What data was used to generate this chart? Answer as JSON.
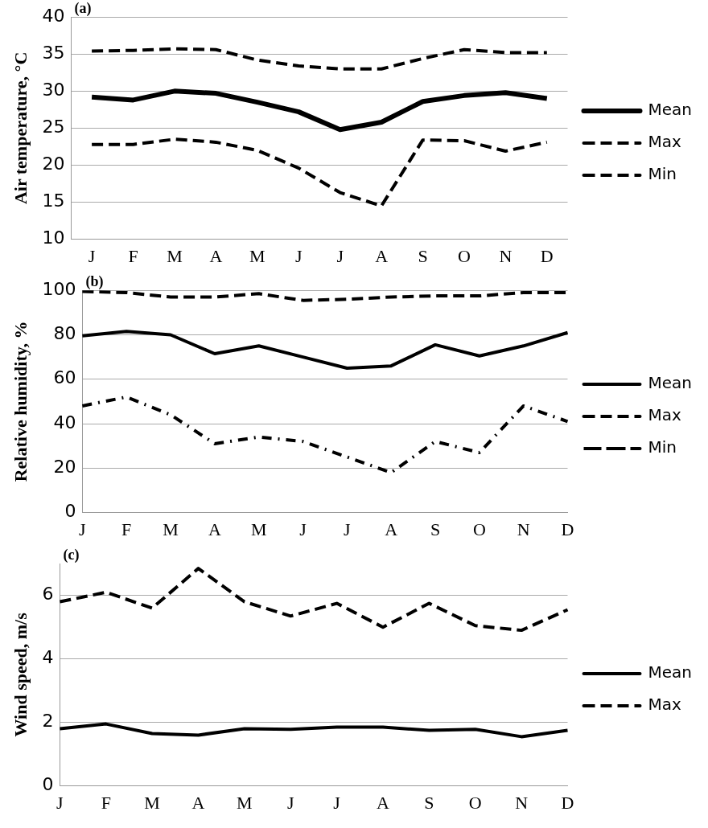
{
  "chart_data": [
    {
      "type": "line",
      "annotations": [
        "(a)"
      ],
      "ylabel": "Air temperature, °C",
      "categories": [
        "J",
        "F",
        "M",
        "A",
        "M",
        "J",
        "J",
        "A",
        "S",
        "O",
        "N",
        "D"
      ],
      "ylim": [
        10,
        40
      ],
      "yticks": [
        10,
        15,
        20,
        25,
        30,
        35,
        40
      ],
      "grid": "y",
      "legend": "right",
      "marker": "none",
      "series": [
        {
          "name": "Mean",
          "color": "#000000",
          "line_style": "solid",
          "values": [
            29.2,
            28.8,
            30,
            29.7,
            28.5,
            27.2,
            24.8,
            25.8,
            28.6,
            29.4,
            29.8,
            29
          ]
        },
        {
          "name": "Max",
          "color": "#000000",
          "line_style": "dashed",
          "values": [
            35.4,
            35.5,
            35.7,
            35.6,
            34.2,
            33.4,
            33,
            33,
            34.4,
            35.6,
            35.2,
            35.2
          ]
        },
        {
          "name": "Min",
          "color": "#000000",
          "line_style": "dashed",
          "values": [
            22.8,
            22.8,
            23.5,
            23.1,
            22,
            19.6,
            16.3,
            14.5,
            23.4,
            23.3,
            21.9,
            23.1
          ]
        }
      ]
    },
    {
      "type": "line",
      "annotations": [
        "(b)"
      ],
      "ylabel": "Relative humidity, %",
      "categories": [
        "J",
        "F",
        "M",
        "A",
        "M",
        "J",
        "J",
        "A",
        "S",
        "O",
        "N",
        "D"
      ],
      "ylim": [
        0,
        100
      ],
      "yticks": [
        0,
        20,
        40,
        60,
        80,
        100
      ],
      "grid": "y",
      "legend": "right",
      "marker": "none",
      "series": [
        {
          "name": "Mean",
          "color": "#000000",
          "line_style": "solid",
          "values": [
            79.5,
            81.5,
            80,
            71.5,
            75,
            70,
            65,
            66,
            75.5,
            70.5,
            75,
            81
          ]
        },
        {
          "name": "Max",
          "color": "#000000",
          "line_style": "dashed",
          "values": [
            99.5,
            99,
            97,
            97,
            98.5,
            95.5,
            96,
            97,
            97.5,
            97.5,
            99,
            99
          ]
        },
        {
          "name": "Min",
          "color": "#000000",
          "line_style": "dotted",
          "values": [
            48,
            52,
            44,
            31,
            34,
            32,
            25,
            18,
            32,
            27,
            48,
            41
          ]
        }
      ]
    },
    {
      "type": "line",
      "annotations": [
        "(c)"
      ],
      "ylabel": "Wind speed, m/s",
      "categories": [
        "J",
        "F",
        "M",
        "A",
        "M",
        "J",
        "J",
        "A",
        "S",
        "O",
        "N",
        "D"
      ],
      "ylim": [
        0,
        7
      ],
      "yticks": [
        0,
        2,
        4,
        6
      ],
      "grid": "y",
      "legend": "right",
      "marker": "none",
      "series": [
        {
          "name": "Mean",
          "color": "#000000",
          "line_style": "solid",
          "values": [
            1.8,
            1.95,
            1.65,
            1.6,
            1.8,
            1.78,
            1.85,
            1.85,
            1.75,
            1.78,
            1.55,
            1.75
          ]
        },
        {
          "name": "Max",
          "color": "#000000",
          "line_style": "dashed",
          "values": [
            5.8,
            6.1,
            5.6,
            6.85,
            5.8,
            5.35,
            5.75,
            5,
            5.75,
            5.05,
            4.9,
            5.55
          ]
        }
      ]
    }
  ]
}
